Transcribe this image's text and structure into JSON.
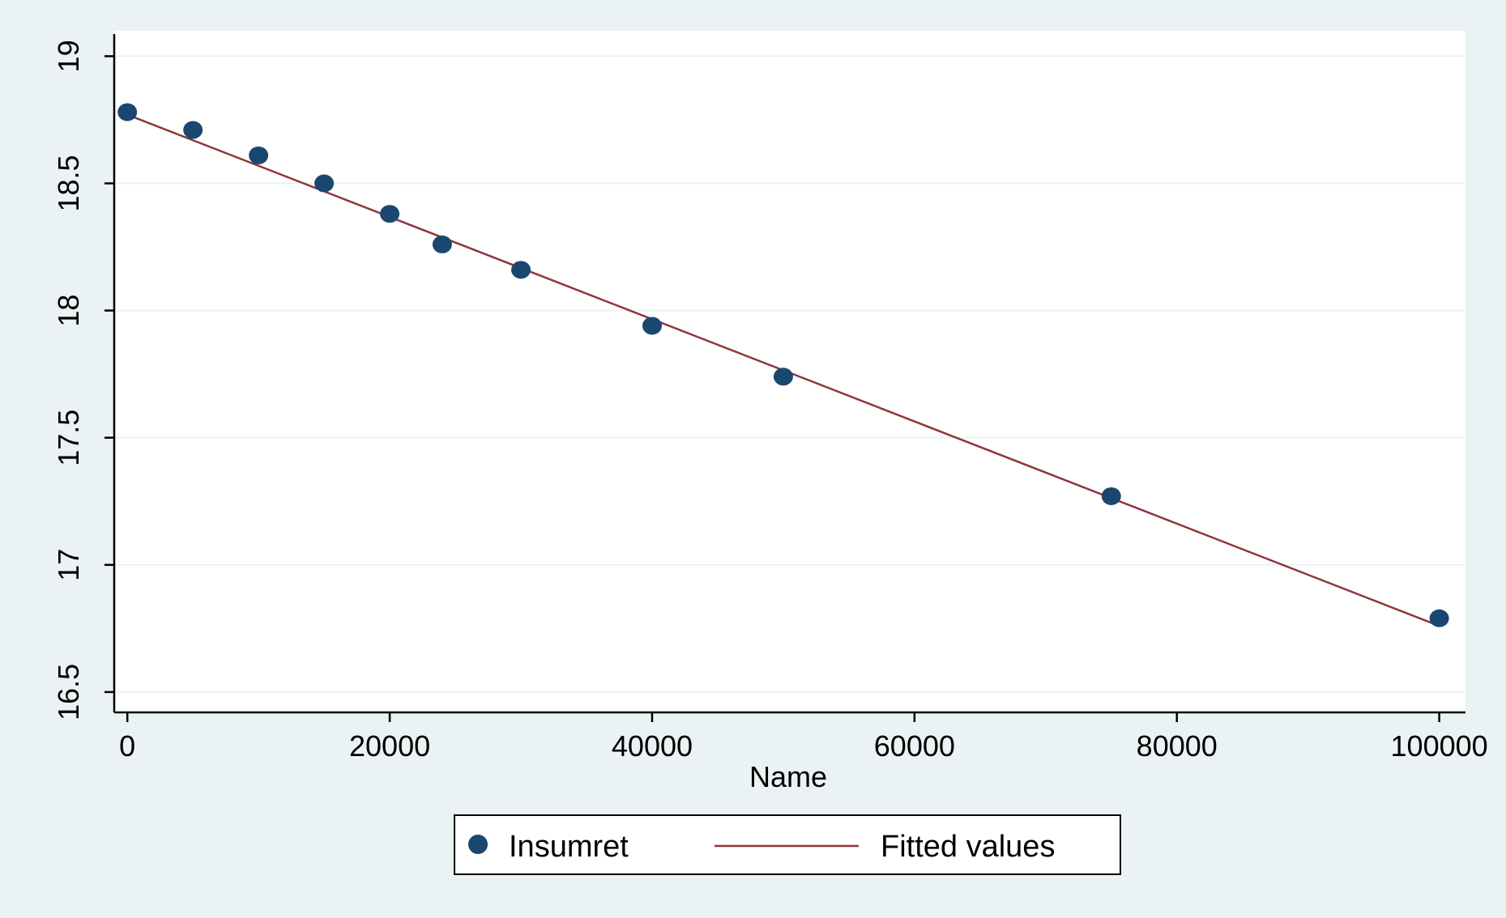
{
  "chart_data": {
    "type": "scatter",
    "title": "",
    "xlabel": "Name",
    "ylabel": "",
    "xlim": [
      -1000,
      102000
    ],
    "ylim": [
      16.42,
      19.1
    ],
    "x_ticks": [
      {
        "value": 0,
        "label": "0"
      },
      {
        "value": 20000,
        "label": "20000"
      },
      {
        "value": 40000,
        "label": "40000"
      },
      {
        "value": 60000,
        "label": "60000"
      },
      {
        "value": 80000,
        "label": "80000"
      },
      {
        "value": 100000,
        "label": "100000"
      }
    ],
    "y_ticks": [
      {
        "value": 16.5,
        "label": "16.5"
      },
      {
        "value": 17,
        "label": "17"
      },
      {
        "value": 17.5,
        "label": "17.5"
      },
      {
        "value": 18,
        "label": "18"
      },
      {
        "value": 18.5,
        "label": "18.5"
      },
      {
        "value": 19,
        "label": "19"
      }
    ],
    "grid": "horizontal",
    "legend_position": "bottom",
    "series": [
      {
        "name": "Insumret",
        "kind": "scatter",
        "color": "#1a476f",
        "points": [
          {
            "x": 0,
            "y": 18.78
          },
          {
            "x": 5000,
            "y": 18.71
          },
          {
            "x": 10000,
            "y": 18.61
          },
          {
            "x": 15000,
            "y": 18.5
          },
          {
            "x": 20000,
            "y": 18.38
          },
          {
            "x": 24000,
            "y": 18.26
          },
          {
            "x": 30000,
            "y": 18.16
          },
          {
            "x": 40000,
            "y": 17.94
          },
          {
            "x": 50000,
            "y": 17.74
          },
          {
            "x": 75000,
            "y": 17.27
          },
          {
            "x": 100000,
            "y": 16.79
          }
        ]
      },
      {
        "name": "Fitted values",
        "kind": "line",
        "color": "#90353b",
        "points": [
          {
            "x": 0,
            "y": 18.77
          },
          {
            "x": 100000,
            "y": 16.76
          }
        ]
      }
    ],
    "colors": {
      "background": "#eaf2f3",
      "plot_background": "#ffffff",
      "grid": "#eaf2f3",
      "axis": "#000000"
    }
  }
}
